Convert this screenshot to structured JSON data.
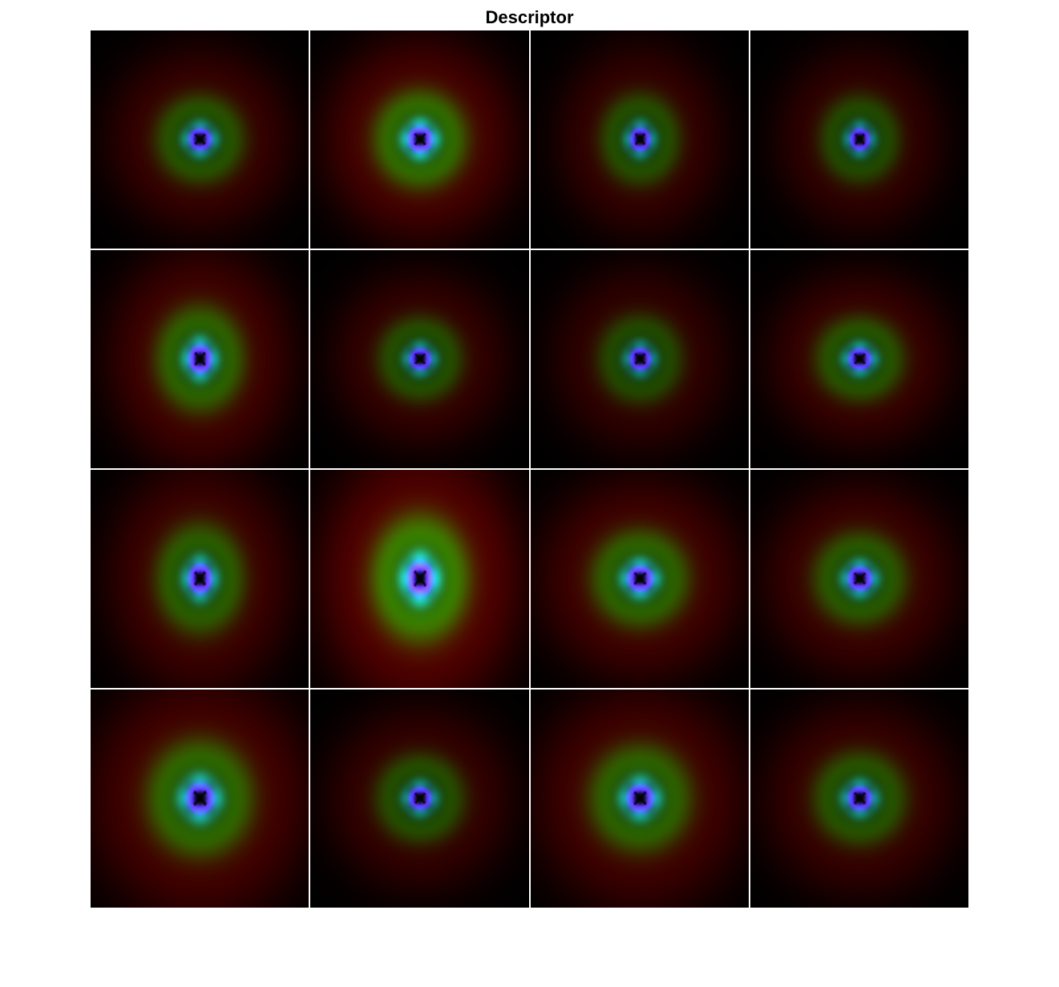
{
  "title": "Descriptor",
  "grid": {
    "rows": 4,
    "cols": 4
  },
  "colors": {
    "background": "#ffffff",
    "cell_background": "#000000",
    "separator": "#ffffff",
    "title": "#000000"
  }
}
